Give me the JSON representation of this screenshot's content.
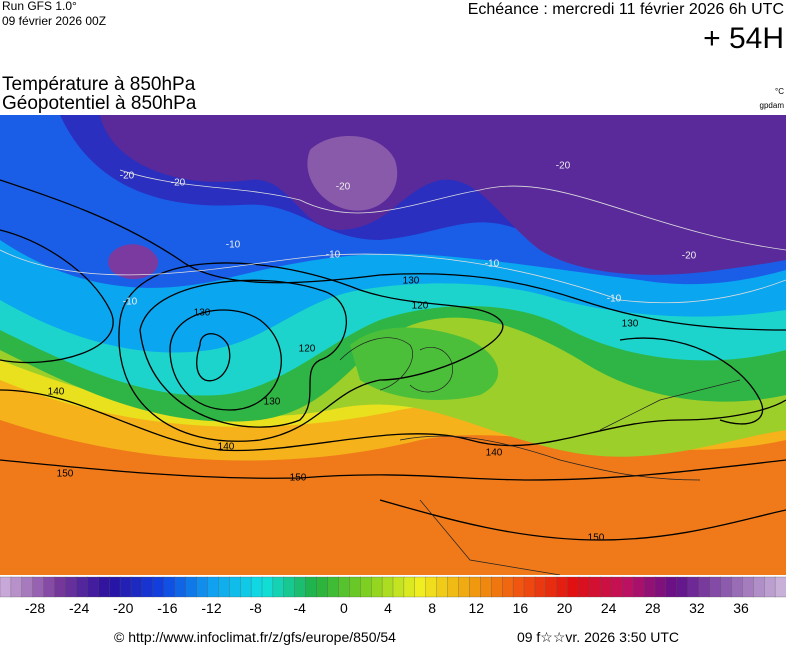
{
  "header": {
    "run": "Run GFS 1.0°",
    "run_date": "09 février 2026 00Z",
    "echeance": "Echéance : mercredi 11 février 2026 6h UTC",
    "lead": "+ 54H"
  },
  "titles": {
    "line1": "Température à 850hPa",
    "line2": "Géopotentiel à 850hPa",
    "unit_temp": "°C",
    "unit_geo": "gpdam"
  },
  "map": {
    "contour_labels": [
      "130",
      "120",
      "130",
      "120",
      "130",
      "140",
      "140",
      "140",
      "150",
      "150",
      "150",
      "130",
      "-10",
      "-10",
      "-10",
      "-10",
      "-10",
      "-20",
      "-20",
      "-20",
      "-20",
      "-20"
    ]
  },
  "colorbar": {
    "ticks": [
      -28,
      -24,
      -20,
      -16,
      -12,
      -8,
      -4,
      0,
      4,
      8,
      12,
      16,
      20,
      24,
      28,
      32,
      36
    ]
  },
  "footer": {
    "url": "© http://www.infoclimat.fr/z/gfs/europe/850/54",
    "timestamp": "09 f☆☆vr. 2026  3:50 UTC"
  }
}
